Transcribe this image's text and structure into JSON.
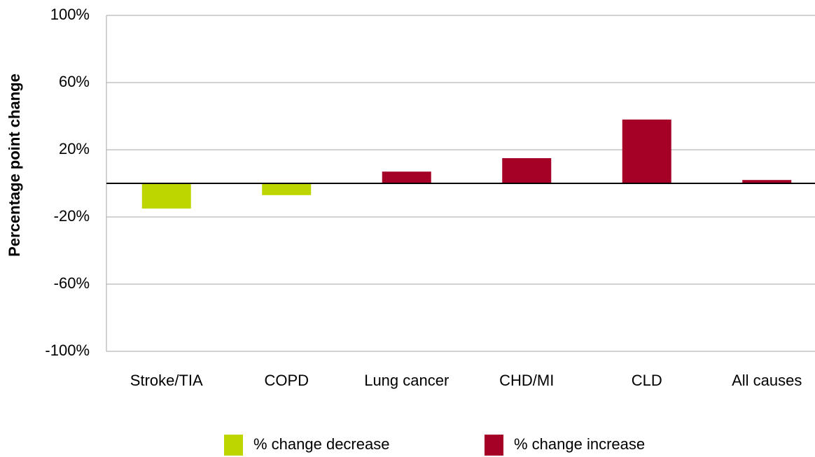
{
  "chart_data": {
    "type": "bar",
    "y_label": "Percentage point change",
    "categories": [
      "Stroke/TIA",
      "COPD",
      "Lung cancer",
      "CHD/MI",
      "CLD",
      "All causes"
    ],
    "series": [
      {
        "name": "% change decrease",
        "color": "#bed600",
        "values": [
          -15,
          -7,
          null,
          null,
          null,
          null
        ]
      },
      {
        "name": "% change increase",
        "color": "#a50026",
        "values": [
          null,
          null,
          7,
          15,
          38,
          2
        ]
      }
    ],
    "ylim": [
      -100,
      100
    ],
    "yticks": [
      {
        "value": 100,
        "label": "100%"
      },
      {
        "value": 60,
        "label": "60%"
      },
      {
        "value": 20,
        "label": "20%"
      },
      {
        "value": -20,
        "label": "-20%"
      },
      {
        "value": -60,
        "label": "-60%"
      },
      {
        "value": -100,
        "label": "-100%"
      }
    ],
    "grid": true
  }
}
